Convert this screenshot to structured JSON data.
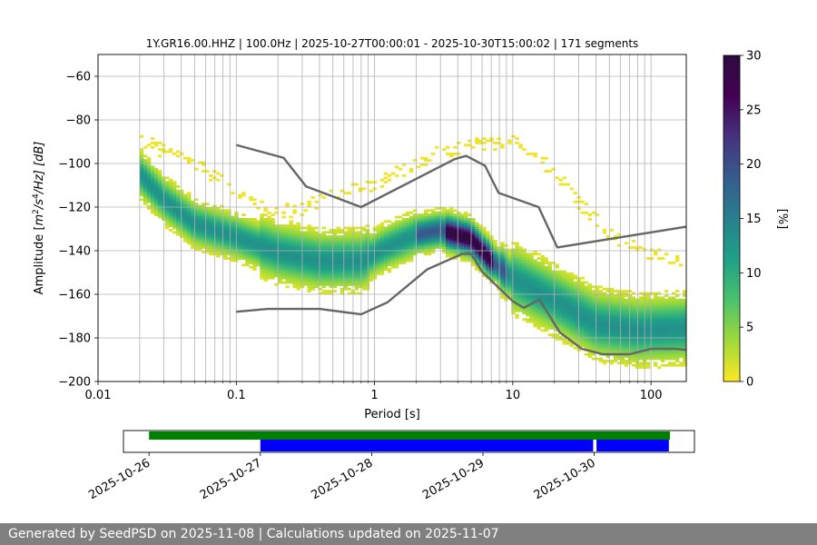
{
  "chart_data": {
    "type": "heatmap",
    "title": "1Y.GR16.00.HHZ | 100.0Hz | 2025-10-27T00:00:01 - 2025-10-30T15:00:02 | 171 segments",
    "xlabel": "Period [s]",
    "ylabel_parts": {
      "pre": "Amplitude [",
      "m": "m",
      "sup1": "2",
      "mid": "/s",
      "sup2": "4",
      "post": "/Hz] [dB]"
    },
    "x_scale": "log",
    "xlim": [
      0.01,
      180
    ],
    "ylim": [
      -200,
      -50
    ],
    "xticks": [
      {
        "value": 0.01,
        "label": "0.01"
      },
      {
        "value": 0.1,
        "label": "0.1"
      },
      {
        "value": 1,
        "label": "1"
      },
      {
        "value": 10,
        "label": "10"
      },
      {
        "value": 100,
        "label": "100"
      }
    ],
    "yticks": [
      {
        "value": -60,
        "label": "−60"
      },
      {
        "value": -80,
        "label": "−80"
      },
      {
        "value": -100,
        "label": "−100"
      },
      {
        "value": -120,
        "label": "−120"
      },
      {
        "value": -140,
        "label": "−140"
      },
      {
        "value": -160,
        "label": "−160"
      },
      {
        "value": -180,
        "label": "−180"
      },
      {
        "value": -200,
        "label": "−200"
      }
    ],
    "grid": true,
    "period_range_s": [
      0.02,
      180
    ],
    "noise_models": [
      {
        "name": "high-noise-model",
        "points": [
          [
            0.1,
            -91.5
          ],
          [
            0.22,
            -97.4
          ],
          [
            0.32,
            -110.5
          ],
          [
            0.8,
            -120
          ],
          [
            3.8,
            -98
          ],
          [
            4.6,
            -96.5
          ],
          [
            6.3,
            -101
          ],
          [
            7.9,
            -113.5
          ],
          [
            15.4,
            -120
          ],
          [
            21,
            -138.5
          ],
          [
            180,
            -129
          ]
        ]
      },
      {
        "name": "low-noise-model",
        "points": [
          [
            0.1,
            -168
          ],
          [
            0.17,
            -166.7
          ],
          [
            0.4,
            -166.7
          ],
          [
            0.8,
            -169.2
          ],
          [
            1.24,
            -163.7
          ],
          [
            2.4,
            -148.6
          ],
          [
            4.3,
            -141.5
          ],
          [
            5.0,
            -141.5
          ],
          [
            6.0,
            -149.6
          ],
          [
            10.0,
            -163.2
          ],
          [
            12.0,
            -166.2
          ],
          [
            15.6,
            -162.4
          ],
          [
            21.9,
            -177.5
          ],
          [
            31.6,
            -185
          ],
          [
            45,
            -187.5
          ],
          [
            70,
            -187.5
          ],
          [
            100,
            -185
          ],
          [
            150,
            -185
          ],
          [
            180,
            -185.5
          ]
        ]
      }
    ],
    "mode_curve": [
      [
        0.02,
        -105
      ],
      [
        0.03,
        -117
      ],
      [
        0.05,
        -128
      ],
      [
        0.1,
        -134
      ],
      [
        0.2,
        -141
      ],
      [
        0.4,
        -145
      ],
      [
        0.8,
        -145
      ],
      [
        1.2,
        -139
      ],
      [
        2,
        -133
      ],
      [
        3,
        -131
      ],
      [
        5,
        -135
      ],
      [
        7,
        -145
      ],
      [
        10,
        -153
      ],
      [
        20,
        -163
      ],
      [
        40,
        -174
      ],
      [
        80,
        -177
      ],
      [
        180,
        -176
      ]
    ],
    "microseism_secondary_curve": [
      [
        0.02,
        -90
      ],
      [
        0.05,
        -100
      ],
      [
        0.1,
        -114
      ],
      [
        0.2,
        -123
      ],
      [
        0.3,
        -121
      ],
      [
        0.5,
        -115
      ],
      [
        1,
        -110
      ],
      [
        2,
        -100
      ],
      [
        3,
        -95
      ],
      [
        5,
        -92
      ],
      [
        10,
        -90
      ],
      [
        20,
        -104
      ],
      [
        30,
        -118
      ],
      [
        50,
        -133
      ],
      [
        100,
        -142
      ],
      [
        180,
        -146
      ]
    ],
    "colorbar": {
      "label": "[%]",
      "min": 0,
      "max": 30,
      "colormap": "viridis-reversed",
      "ticks": [
        {
          "value": 0,
          "label": "0"
        },
        {
          "value": 5,
          "label": "5"
        },
        {
          "value": 10,
          "label": "10"
        },
        {
          "value": 15,
          "label": "15"
        },
        {
          "value": 20,
          "label": "20"
        },
        {
          "value": 25,
          "label": "25"
        },
        {
          "value": 30,
          "label": "30"
        }
      ]
    },
    "timeline": {
      "ticks": [
        "2025-10-26",
        "2025-10-27",
        "2025-10-28",
        "2025-10-29",
        "2025-10-30"
      ],
      "range_days": [
        -0.23,
        4.9
      ],
      "green_bars": [
        [
          0.0,
          4.68
        ]
      ],
      "blue_bars": [
        [
          1.0,
          3.99
        ],
        [
          4.02,
          4.67
        ]
      ]
    },
    "colors": {
      "grid": "#b0b0b0",
      "noise_model": "#666666",
      "green": "#008000",
      "blue": "#0000ff",
      "footer_bg": "#808080"
    }
  },
  "footer": {
    "text": "Generated by SeedPSD on 2025-11-08 | Calculations updated on 2025-11-07"
  }
}
